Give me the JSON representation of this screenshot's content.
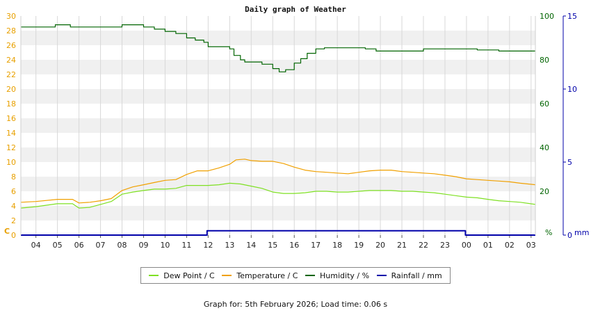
{
  "chart_data": {
    "type": "line",
    "title": "Daily graph of Weather",
    "x_ticks": [
      "04",
      "05",
      "06",
      "07",
      "08",
      "09",
      "10",
      "11",
      "12",
      "13",
      "14",
      "15",
      "16",
      "17",
      "18",
      "19",
      "20",
      "21",
      "22",
      "23",
      "00",
      "01",
      "02",
      "03"
    ],
    "x_range": [
      3.3,
      27.2
    ],
    "axes": {
      "left": {
        "unit_label": "C",
        "ticks": [
          0,
          2,
          4,
          6,
          8,
          10,
          12,
          14,
          16,
          18,
          20,
          22,
          24,
          26,
          28,
          30
        ],
        "range": [
          0,
          30
        ],
        "color": "#e8a000"
      },
      "right1": {
        "unit_label": "%",
        "ticks": [
          0,
          20,
          40,
          60,
          80,
          100
        ],
        "range": [
          0,
          100
        ],
        "color": "#006400"
      },
      "right2": {
        "unit_label": "mm",
        "ticks": [
          0,
          5,
          10,
          15
        ],
        "range": [
          0,
          15
        ],
        "color": "#0000aa"
      }
    },
    "grid": true,
    "legend_position": "bottom",
    "series": [
      {
        "name": "Dew Point / C",
        "axis": "left",
        "color": "#7ee022",
        "x": [
          3.3,
          4,
          5,
          5.7,
          6,
          6.5,
          7,
          7.5,
          8,
          8.5,
          9,
          9.5,
          10,
          10.5,
          11,
          11.5,
          12,
          12.5,
          13,
          13.5,
          14,
          14.5,
          15,
          15.5,
          16,
          16.5,
          17,
          17.5,
          18,
          18.5,
          19,
          19.5,
          20,
          20.5,
          21,
          21.5,
          22,
          22.5,
          23,
          23.5,
          24,
          24.5,
          25,
          25.5,
          26,
          26.5,
          27.2
        ],
        "y": [
          3.7,
          3.9,
          4.3,
          4.3,
          3.7,
          3.8,
          4.2,
          4.6,
          5.6,
          5.9,
          6.1,
          6.3,
          6.3,
          6.4,
          6.8,
          6.8,
          6.8,
          6.9,
          7.1,
          7.0,
          6.7,
          6.4,
          5.9,
          5.7,
          5.7,
          5.8,
          6.0,
          6.0,
          5.9,
          5.9,
          6.0,
          6.1,
          6.1,
          6.1,
          6.0,
          6.0,
          5.9,
          5.8,
          5.6,
          5.4,
          5.2,
          5.1,
          4.9,
          4.7,
          4.6,
          4.5,
          4.2
        ]
      },
      {
        "name": "Temperature / C",
        "axis": "left",
        "color": "#f0a000",
        "x": [
          3.3,
          4,
          5,
          5.7,
          6,
          6.5,
          7,
          7.5,
          8,
          8.5,
          9,
          9.5,
          10,
          10.5,
          11,
          11.5,
          12,
          12.5,
          13,
          13.3,
          13.7,
          14,
          14.5,
          15,
          15.5,
          16,
          16.5,
          17,
          17.5,
          18,
          18.5,
          19,
          19.5,
          20,
          20.5,
          21,
          21.5,
          22,
          22.5,
          23,
          23.5,
          24,
          24.5,
          25,
          25.5,
          26,
          26.5,
          27.2
        ],
        "y": [
          4.5,
          4.6,
          4.9,
          4.9,
          4.4,
          4.5,
          4.7,
          5.0,
          6.1,
          6.6,
          6.9,
          7.2,
          7.5,
          7.6,
          8.3,
          8.8,
          8.8,
          9.2,
          9.7,
          10.3,
          10.4,
          10.2,
          10.1,
          10.1,
          9.8,
          9.3,
          8.9,
          8.7,
          8.6,
          8.5,
          8.4,
          8.6,
          8.8,
          8.9,
          8.9,
          8.7,
          8.6,
          8.5,
          8.4,
          8.2,
          8.0,
          7.7,
          7.6,
          7.5,
          7.4,
          7.3,
          7.1,
          6.9
        ]
      },
      {
        "name": "Humidity / %",
        "axis": "right1",
        "color": "#006400",
        "x": [
          3.3,
          4,
          4.9,
          5.6,
          6,
          6.5,
          7,
          7.5,
          8,
          8.5,
          9,
          9.5,
          10,
          10.5,
          11,
          11.4,
          11.8,
          12,
          12.5,
          13,
          13.2,
          13.5,
          13.7,
          14,
          14.5,
          15,
          15.3,
          15.6,
          16,
          16.3,
          16.6,
          17,
          17.4,
          17.9,
          18.5,
          19,
          19.3,
          19.8,
          20.5,
          21,
          21.5,
          22,
          22.5,
          23,
          23.5,
          24,
          24.5,
          25,
          25.5,
          26,
          26.5,
          27.2
        ],
        "y": [
          95.0,
          95.0,
          96.0,
          95.0,
          95.0,
          95.0,
          95.0,
          95.0,
          96.0,
          96.0,
          95.0,
          94.0,
          93.0,
          92.0,
          90.0,
          89.0,
          88.0,
          86.0,
          86.0,
          85.0,
          82.0,
          80.0,
          79.0,
          79.0,
          78.0,
          76.0,
          74.5,
          75.5,
          78.5,
          80.5,
          83.0,
          85.0,
          85.5,
          85.5,
          85.5,
          85.5,
          85.0,
          84.0,
          84.0,
          84.0,
          84.0,
          85.0,
          85.0,
          85.0,
          85.0,
          85.0,
          84.5,
          84.5,
          84.0,
          84.0,
          84.0,
          84.0
        ]
      },
      {
        "name": "Rainfall / mm",
        "axis": "right2",
        "color": "#0000aa",
        "x": [
          3.3,
          11.95,
          11.95,
          23.95,
          23.95,
          27.2
        ],
        "y": [
          0,
          0,
          0.3,
          0.3,
          0,
          0
        ]
      }
    ]
  },
  "legend": [
    {
      "label": "Dew Point / C",
      "color": "#7ee022"
    },
    {
      "label": "Temperature / C",
      "color": "#f0a000"
    },
    {
      "label": "Humidity / %",
      "color": "#006400"
    },
    {
      "label": "Rainfall / mm",
      "color": "#0000aa"
    }
  ],
  "footer": "Graph for: 5th February 2026; Load time: 0.06 s"
}
